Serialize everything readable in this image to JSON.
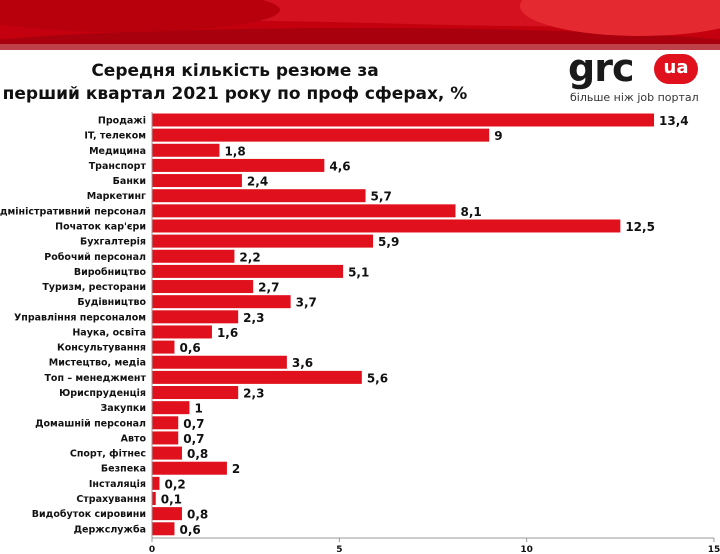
{
  "header": {
    "title_line1": "Середня кількість резюме за",
    "title_line2": "перший квартал 2021 року по проф сферах, %"
  },
  "logo": {
    "brand": "grc",
    "badge": "ua",
    "tagline": "більше ніж job портал"
  },
  "colors": {
    "bar": "#e0101c",
    "banner": "#c4000f",
    "axis": "#999999",
    "text": "#111111"
  },
  "chart_data": {
    "type": "bar",
    "orientation": "horizontal",
    "title": "Середня кількість резюме за перший квартал 2021 року по проф сферах, %",
    "xlim": [
      0,
      15
    ],
    "xticks": [
      0,
      5,
      10,
      15
    ],
    "categories": [
      "Продажі",
      "IT, телеком",
      "Медицина",
      "Транспорт",
      "Банки",
      "Маркетинг",
      "Адміністративний персонал",
      "Початок кар'єри",
      "Бухгалтерія",
      "Робочий персонал",
      "Виробництво",
      "Туризм, ресторани",
      "Будівництво",
      "Управління персоналом",
      "Наука, освіта",
      "Консультування",
      "Мистецтво, медіа",
      "Топ – менеджмент",
      "Юриспруденція",
      "Закупки",
      "Домашній персонал",
      "Авто",
      "Спорт, фітнес",
      "Безпека",
      "Інсталяція",
      "Страхування",
      "Видобуток сировини",
      "Держслужба"
    ],
    "values": [
      13.4,
      9,
      1.8,
      4.6,
      2.4,
      5.7,
      8.1,
      12.5,
      5.9,
      2.2,
      5.1,
      2.7,
      3.7,
      2.3,
      1.6,
      0.6,
      3.6,
      5.6,
      2.3,
      1,
      0.7,
      0.7,
      0.8,
      2,
      0.2,
      0.1,
      0.8,
      0.6
    ],
    "value_labels": [
      "13,4",
      "9",
      "1,8",
      "4,6",
      "2,4",
      "5,7",
      "8,1",
      "12,5",
      "5,9",
      "2,2",
      "5,1",
      "2,7",
      "3,7",
      "2,3",
      "1,6",
      "0,6",
      "3,6",
      "5,6",
      "2,3",
      "1",
      "0,7",
      "0,7",
      "0,8",
      "2",
      "0,2",
      "0,1",
      "0,8",
      "0,6"
    ],
    "grid": false,
    "legend": "none"
  }
}
